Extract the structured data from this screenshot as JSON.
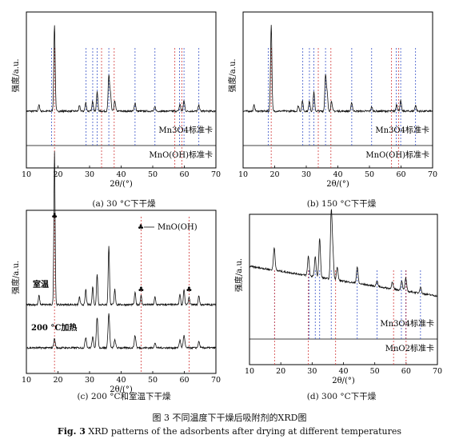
{
  "panels": [
    {
      "id": "a",
      "caption": "(a) 30 °C下干燥",
      "ylabel": "强度/a.u.",
      "xlabel": "2θ/(°)",
      "ref_labels": [
        "Mn3O4标准卡",
        "MnO(OH)标准卡"
      ],
      "curve_labels": [],
      "legend": ""
    },
    {
      "id": "b",
      "caption": "(b) 150 °C下干燥",
      "ylabel": "强度/a.u.",
      "xlabel": "2θ/(°)",
      "ref_labels": [
        "Mn3O4标准卡",
        "MnO(OH)标准卡"
      ],
      "curve_labels": [],
      "legend": ""
    },
    {
      "id": "c",
      "caption": "(c) 200 °C和室温下干燥",
      "ylabel": "强度/a.u.",
      "xlabel": "2θ/(°)",
      "ref_labels": [],
      "curve_labels": [
        "室温",
        "200 °C加热"
      ],
      "legend": "MnO(OH)"
    },
    {
      "id": "d",
      "caption": "(d) 300 °C下干燥",
      "ylabel": "强度/a.u.",
      "xlabel": "2θ/(°)",
      "ref_labels": [
        "Mn3O4标准卡",
        "MnO2标准卡"
      ],
      "curve_labels": [],
      "legend": ""
    }
  ],
  "figure_caption_cn": "图 3  不同温度下干燥后吸附剂的XRD图",
  "figure_caption_en_prefix": "Fig. 3",
  "figure_caption_en": "XRD patterns of the adsorbents after drying at different temperatures",
  "colors": {
    "axis": "#000000",
    "mn3o4_ref": "#3a55c8",
    "mnooh_ref": "#d23a3a",
    "mno2_ref": "#d23a3a",
    "curve": "#111111"
  },
  "chart_data": [
    {
      "type": "line",
      "panel": "a",
      "x_range": [
        10,
        70
      ],
      "xticks": [
        10,
        20,
        30,
        40,
        50,
        60,
        70
      ],
      "series": [
        {
          "peaks_2theta": [
            14.0,
            18.9,
            26.8,
            28.8,
            31.0,
            32.4,
            36.1,
            36.6,
            38.0,
            44.4,
            50.7,
            58.6,
            59.9,
            64.6
          ],
          "peaks_rel_intensity": [
            0.07,
            1.0,
            0.06,
            0.1,
            0.12,
            0.22,
            0.4,
            0.2,
            0.12,
            0.1,
            0.05,
            0.08,
            0.12,
            0.07
          ]
        }
      ],
      "reference_lines": {
        "Mn3O4": [
          18.0,
          28.9,
          31.0,
          32.4,
          36.1,
          44.4,
          50.7,
          58.5,
          59.9,
          64.6
        ],
        "MnO(OH)": [
          18.9,
          33.8,
          37.8,
          57.0,
          59.2
        ]
      }
    },
    {
      "type": "line",
      "panel": "b",
      "x_range": [
        10,
        70
      ],
      "xticks": [
        10,
        20,
        30,
        40,
        50,
        60,
        70
      ],
      "series": [
        {
          "peaks_2theta": [
            13.5,
            18.9,
            27.5,
            28.8,
            31.0,
            32.4,
            36.1,
            36.6,
            38.0,
            44.4,
            50.7,
            58.6,
            59.9,
            64.6
          ],
          "peaks_rel_intensity": [
            0.07,
            1.0,
            0.06,
            0.12,
            0.12,
            0.22,
            0.42,
            0.2,
            0.12,
            0.1,
            0.05,
            0.08,
            0.12,
            0.07
          ]
        }
      ],
      "reference_lines": {
        "Mn3O4": [
          18.0,
          28.9,
          31.0,
          32.4,
          36.1,
          44.4,
          50.7,
          58.5,
          59.9,
          64.6
        ],
        "MnO(OH)": [
          18.9,
          33.8,
          37.8,
          57.0,
          59.2
        ]
      }
    },
    {
      "type": "line",
      "panel": "c",
      "x_range": [
        10,
        70
      ],
      "xticks": [
        10,
        20,
        30,
        40,
        50,
        60,
        70
      ],
      "series": [
        {
          "name": "室温",
          "peaks_2theta": [
            14.0,
            18.9,
            26.8,
            28.8,
            31.0,
            32.4,
            36.1,
            38.0,
            44.4,
            46.3,
            50.7,
            58.6,
            59.9,
            61.5,
            64.6
          ],
          "peaks_rel_intensity": [
            0.06,
            1.0,
            0.05,
            0.1,
            0.12,
            0.2,
            0.38,
            0.1,
            0.08,
            0.06,
            0.05,
            0.07,
            0.1,
            0.05,
            0.06
          ]
        },
        {
          "name": "200 °C加热",
          "peaks_2theta": [
            18.9,
            28.8,
            31.0,
            32.4,
            36.1,
            38.0,
            44.4,
            50.7,
            58.6,
            59.9,
            64.6
          ],
          "peaks_rel_intensity": [
            0.12,
            0.14,
            0.14,
            0.4,
            0.45,
            0.1,
            0.16,
            0.06,
            0.1,
            0.16,
            0.08
          ]
        }
      ],
      "marker_positions_2theta": [
        18.9,
        46.3,
        61.5
      ],
      "reference_lines": {
        "MnO(OH)": [
          18.9,
          46.3,
          61.5
        ]
      }
    },
    {
      "type": "line",
      "panel": "d",
      "x_range": [
        10,
        70
      ],
      "xticks": [
        10,
        20,
        30,
        40,
        50,
        60,
        70
      ],
      "series": [
        {
          "peaks_2theta": [
            17.9,
            28.8,
            31.0,
            32.4,
            36.1,
            36.6,
            38.0,
            44.4,
            50.7,
            55.6,
            58.6,
            59.9,
            64.6
          ],
          "peaks_rel_intensity": [
            0.35,
            0.3,
            0.3,
            0.6,
            1.0,
            0.4,
            0.2,
            0.25,
            0.08,
            0.1,
            0.15,
            0.2,
            0.1
          ]
        }
      ],
      "reference_lines": {
        "Mn3O4": [
          18.0,
          29.0,
          31.0,
          32.4,
          36.1,
          44.4,
          50.7,
          58.5,
          59.9,
          64.6
        ],
        "MnO2": [
          18.0,
          28.8,
          37.5,
          56.0,
          60.0
        ]
      }
    }
  ]
}
